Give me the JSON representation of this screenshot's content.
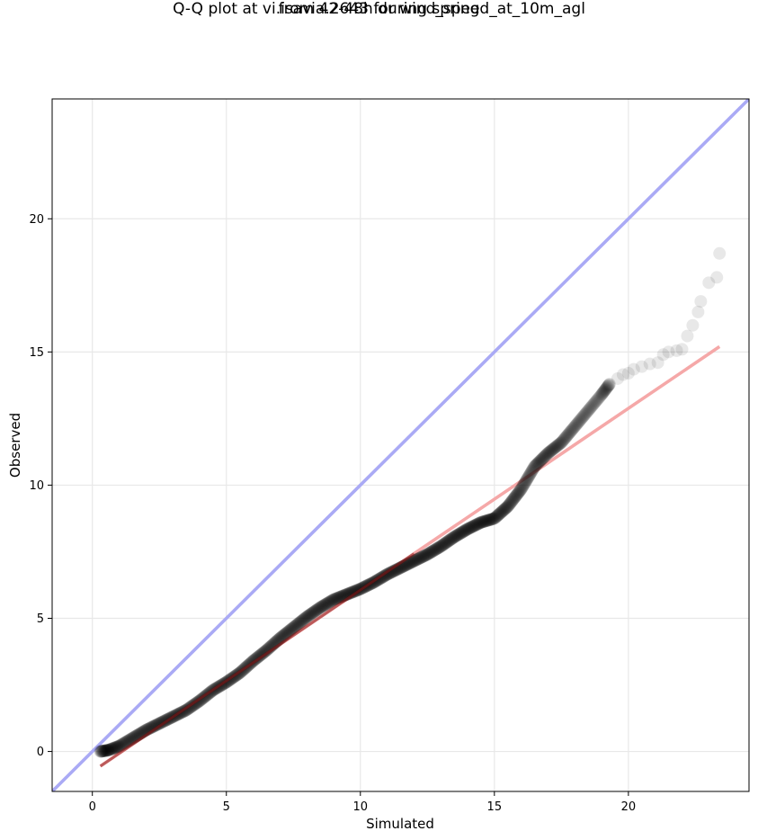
{
  "chart_data": {
    "type": "scatter",
    "title": "Q-Q plot at vi.isavia.2643 for wind_speed_at_10m_agl",
    "subtitle": "from 42-48h during spring",
    "xlabel": "Simulated",
    "ylabel": "Observed",
    "xlim": [
      -1.5,
      24.5
    ],
    "ylim": [
      -1.5,
      24.5
    ],
    "xticks": [
      0,
      5,
      10,
      15,
      20
    ],
    "yticks": [
      0,
      5,
      10,
      15,
      20
    ],
    "grid": true,
    "colors": {
      "points": "#000000",
      "identity_line": "#aaaaf5",
      "fit_line": "#f5a8a8",
      "fit_line_dense": "#8b1a1a"
    },
    "identity_line": {
      "slope": 1,
      "intercept": 0
    },
    "fit_line": {
      "x": [
        0.3,
        23.4
      ],
      "y": [
        -0.55,
        15.2
      ]
    },
    "qq_anchors": {
      "x": [
        0.3,
        0.6,
        1.0,
        1.5,
        2.0,
        2.5,
        3.0,
        3.5,
        4.0,
        4.5,
        5.0,
        5.5,
        6.0,
        6.5,
        7.0,
        7.5,
        8.0,
        8.5,
        9.0,
        9.5,
        10.0,
        10.5,
        11.0,
        11.5,
        12.0,
        12.5,
        13.0,
        13.5,
        14.0,
        14.5,
        15.0,
        15.5,
        16.0,
        16.5,
        17.0,
        17.5,
        18.0,
        18.5,
        19.0,
        19.3
      ],
      "y": [
        0.0,
        0.05,
        0.2,
        0.5,
        0.8,
        1.05,
        1.3,
        1.55,
        1.9,
        2.3,
        2.6,
        2.95,
        3.4,
        3.8,
        4.25,
        4.65,
        5.05,
        5.4,
        5.7,
        5.9,
        6.1,
        6.35,
        6.65,
        6.9,
        7.15,
        7.4,
        7.7,
        8.05,
        8.35,
        8.6,
        8.75,
        9.2,
        9.85,
        10.7,
        11.2,
        11.6,
        12.2,
        12.8,
        13.4,
        13.8
      ]
    },
    "tail_points": {
      "x": [
        19.6,
        19.8,
        20.0,
        20.2,
        20.5,
        20.8,
        21.1,
        21.3,
        21.5,
        21.8,
        22.0,
        22.2,
        22.4,
        22.6,
        22.7,
        23.0,
        23.3,
        23.4
      ],
      "y": [
        14.0,
        14.15,
        14.2,
        14.35,
        14.45,
        14.55,
        14.6,
        14.9,
        15.0,
        15.05,
        15.1,
        15.6,
        16.0,
        16.5,
        16.9,
        17.6,
        17.8,
        18.7
      ]
    },
    "n_dense_points": 900
  }
}
